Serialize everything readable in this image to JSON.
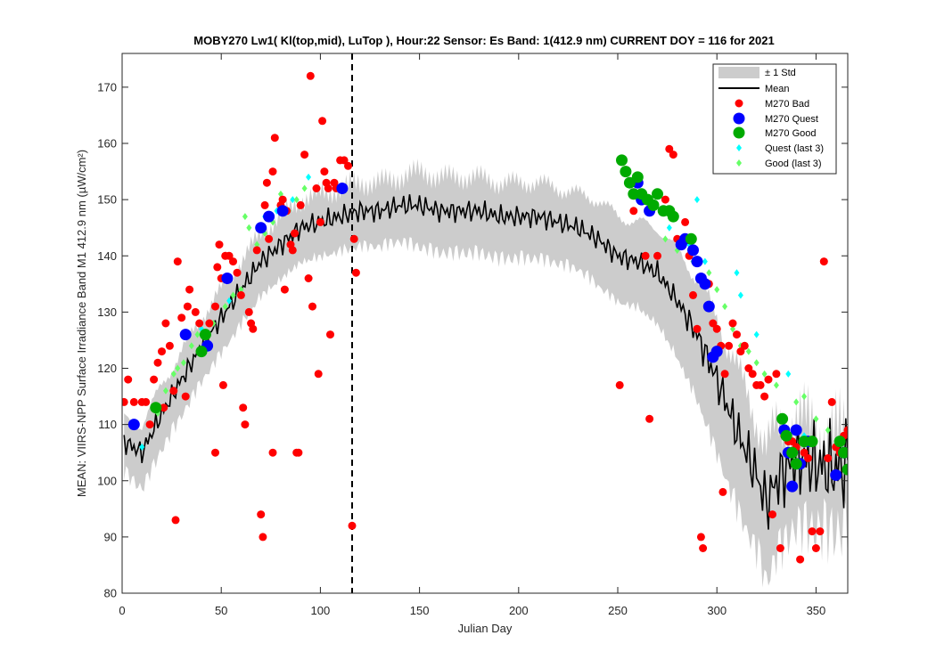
{
  "chart_data": {
    "type": "scatter",
    "title": "MOBY270   Lw1( Kl(top,mid), LuTop ),   Hour:22 Sensor: Es Band: 1(412.9 nm)   CURRENT DOY = 116 for 2021",
    "xlabel": "Julian Day",
    "ylabel": "MEAN: VIIRS-NPP Surface Irradiance Band M1 412.9 nm (µW/cm²)",
    "xlim": [
      0,
      366
    ],
    "ylim": [
      80,
      176
    ],
    "xticks": [
      0,
      50,
      100,
      150,
      200,
      250,
      300,
      350
    ],
    "yticks": [
      80,
      90,
      100,
      110,
      120,
      130,
      140,
      150,
      160,
      170
    ],
    "current_doy": 116,
    "grid": false,
    "legend_position": "top-right",
    "legend": [
      "± 1 Std",
      "Mean",
      "M270 Bad",
      "M270 Quest",
      "M270 Good",
      "Quest (last 3)",
      "Good (last 3)"
    ],
    "colors": {
      "std_band": "#cccccc",
      "mean": "#000000",
      "bad": "#ff0000",
      "quest": "#0000ff",
      "good": "#00aa00",
      "quest_last3": "#00ffff",
      "good_last3": "#66ff66"
    },
    "mean_std_series": [
      {
        "x": 1,
        "mean": 107,
        "std": 4
      },
      {
        "x": 10,
        "mean": 105,
        "std": 5
      },
      {
        "x": 20,
        "mean": 112,
        "std": 5
      },
      {
        "x": 30,
        "mean": 118,
        "std": 5
      },
      {
        "x": 40,
        "mean": 124,
        "std": 5
      },
      {
        "x": 50,
        "mean": 129,
        "std": 5
      },
      {
        "x": 60,
        "mean": 134,
        "std": 5
      },
      {
        "x": 70,
        "mean": 139,
        "std": 5
      },
      {
        "x": 80,
        "mean": 142,
        "std": 5
      },
      {
        "x": 90,
        "mean": 145,
        "std": 5
      },
      {
        "x": 100,
        "mean": 146,
        "std": 5
      },
      {
        "x": 110,
        "mean": 147,
        "std": 5
      },
      {
        "x": 120,
        "mean": 148,
        "std": 5
      },
      {
        "x": 130,
        "mean": 148,
        "std": 5
      },
      {
        "x": 140,
        "mean": 149,
        "std": 5
      },
      {
        "x": 150,
        "mean": 149,
        "std": 6
      },
      {
        "x": 160,
        "mean": 148,
        "std": 6
      },
      {
        "x": 170,
        "mean": 148,
        "std": 6
      },
      {
        "x": 180,
        "mean": 148,
        "std": 6
      },
      {
        "x": 190,
        "mean": 147,
        "std": 6
      },
      {
        "x": 200,
        "mean": 147,
        "std": 6
      },
      {
        "x": 210,
        "mean": 147,
        "std": 6
      },
      {
        "x": 220,
        "mean": 146,
        "std": 6
      },
      {
        "x": 230,
        "mean": 145,
        "std": 6
      },
      {
        "x": 240,
        "mean": 143,
        "std": 7
      },
      {
        "x": 250,
        "mean": 140,
        "std": 7
      },
      {
        "x": 260,
        "mean": 139,
        "std": 7
      },
      {
        "x": 270,
        "mean": 137,
        "std": 8
      },
      {
        "x": 280,
        "mean": 132,
        "std": 9
      },
      {
        "x": 290,
        "mean": 126,
        "std": 10
      },
      {
        "x": 300,
        "mean": 118,
        "std": 11
      },
      {
        "x": 310,
        "mean": 109,
        "std": 11
      },
      {
        "x": 320,
        "mean": 101,
        "std": 10
      },
      {
        "x": 325,
        "mean": 96,
        "std": 10
      },
      {
        "x": 330,
        "mean": 100,
        "std": 9
      },
      {
        "x": 340,
        "mean": 104,
        "std": 7
      },
      {
        "x": 350,
        "mean": 103,
        "std": 6
      },
      {
        "x": 360,
        "mean": 102,
        "std": 5
      },
      {
        "x": 366,
        "mean": 103,
        "std": 4
      }
    ],
    "series": [
      {
        "name": "M270 Bad",
        "points": [
          [
            1,
            114
          ],
          [
            3,
            118
          ],
          [
            6,
            114
          ],
          [
            10,
            114
          ],
          [
            12,
            114
          ],
          [
            14,
            110
          ],
          [
            16,
            118
          ],
          [
            18,
            121
          ],
          [
            20,
            123
          ],
          [
            22,
            128
          ],
          [
            24,
            124
          ],
          [
            26,
            116
          ],
          [
            28,
            139
          ],
          [
            30,
            129
          ],
          [
            32,
            115
          ],
          [
            33,
            131
          ],
          [
            34,
            134
          ],
          [
            37,
            130
          ],
          [
            39,
            128
          ],
          [
            42,
            126
          ],
          [
            44,
            128
          ],
          [
            47,
            131
          ],
          [
            48,
            138
          ],
          [
            49,
            142
          ],
          [
            50,
            136
          ],
          [
            51,
            117
          ],
          [
            52,
            140
          ],
          [
            54,
            140
          ],
          [
            56,
            139
          ],
          [
            58,
            137
          ],
          [
            60,
            133
          ],
          [
            61,
            113
          ],
          [
            62,
            110
          ],
          [
            64,
            130
          ],
          [
            65,
            128
          ],
          [
            66,
            127
          ],
          [
            68,
            141
          ],
          [
            70,
            94
          ],
          [
            71,
            90
          ],
          [
            72,
            149
          ],
          [
            73,
            153
          ],
          [
            74,
            143
          ],
          [
            76,
            155
          ],
          [
            77,
            161
          ],
          [
            80,
            149
          ],
          [
            81,
            150
          ],
          [
            82,
            134
          ],
          [
            83,
            148
          ],
          [
            85,
            142
          ],
          [
            86,
            141
          ],
          [
            87,
            144
          ],
          [
            88,
            105
          ],
          [
            89,
            105
          ],
          [
            90,
            149
          ],
          [
            92,
            158
          ],
          [
            94,
            136
          ],
          [
            95,
            172
          ],
          [
            96,
            131
          ],
          [
            98,
            152
          ],
          [
            99,
            119
          ],
          [
            100,
            146
          ],
          [
            101,
            164
          ],
          [
            102,
            155
          ],
          [
            103,
            153
          ],
          [
            104,
            152
          ],
          [
            105,
            126
          ],
          [
            107,
            153
          ],
          [
            108,
            152
          ],
          [
            110,
            157
          ],
          [
            112,
            157
          ],
          [
            114,
            156
          ],
          [
            116,
            92
          ],
          [
            117,
            143
          ],
          [
            118,
            137
          ],
          [
            21,
            113
          ],
          [
            47,
            105
          ],
          [
            27,
            93
          ],
          [
            76,
            105
          ],
          [
            251,
            117
          ],
          [
            258,
            148
          ],
          [
            262,
            151
          ],
          [
            264,
            140
          ],
          [
            266,
            111
          ],
          [
            270,
            140
          ],
          [
            274,
            150
          ],
          [
            276,
            159
          ],
          [
            278,
            158
          ],
          [
            280,
            143
          ],
          [
            284,
            146
          ],
          [
            286,
            140
          ],
          [
            288,
            133
          ],
          [
            290,
            127
          ],
          [
            292,
            90
          ],
          [
            293,
            88
          ],
          [
            296,
            135
          ],
          [
            298,
            128
          ],
          [
            300,
            127
          ],
          [
            302,
            124
          ],
          [
            303,
            98
          ],
          [
            304,
            119
          ],
          [
            306,
            124
          ],
          [
            308,
            128
          ],
          [
            310,
            126
          ],
          [
            312,
            123
          ],
          [
            314,
            124
          ],
          [
            316,
            120
          ],
          [
            318,
            119
          ],
          [
            320,
            117
          ],
          [
            322,
            117
          ],
          [
            324,
            115
          ],
          [
            326,
            118
          ],
          [
            328,
            94
          ],
          [
            330,
            119
          ],
          [
            332,
            88
          ],
          [
            334,
            108
          ],
          [
            336,
            107
          ],
          [
            338,
            107
          ],
          [
            340,
            106
          ],
          [
            342,
            86
          ],
          [
            344,
            105
          ],
          [
            346,
            104
          ],
          [
            348,
            91
          ],
          [
            350,
            88
          ],
          [
            352,
            91
          ],
          [
            354,
            139
          ],
          [
            356,
            104
          ],
          [
            358,
            114
          ],
          [
            360,
            106
          ],
          [
            362,
            105
          ],
          [
            364,
            108
          ],
          [
            366,
            109
          ]
        ]
      },
      {
        "name": "M270 Quest",
        "points": [
          [
            6,
            110
          ],
          [
            32,
            126
          ],
          [
            43,
            124
          ],
          [
            53,
            136
          ],
          [
            70,
            145
          ],
          [
            74,
            147
          ],
          [
            81,
            148
          ],
          [
            111,
            152
          ],
          [
            260,
            153
          ],
          [
            262,
            150
          ],
          [
            266,
            148
          ],
          [
            282,
            142
          ],
          [
            284,
            143
          ],
          [
            288,
            141
          ],
          [
            290,
            139
          ],
          [
            292,
            136
          ],
          [
            294,
            135
          ],
          [
            296,
            131
          ],
          [
            298,
            122
          ],
          [
            300,
            123
          ],
          [
            334,
            109
          ],
          [
            336,
            105
          ],
          [
            338,
            99
          ],
          [
            340,
            109
          ],
          [
            342,
            103
          ],
          [
            346,
            107
          ],
          [
            360,
            101
          ],
          [
            364,
            105
          ]
        ]
      },
      {
        "name": "M270 Good",
        "points": [
          [
            17,
            113
          ],
          [
            40,
            123
          ],
          [
            42,
            126
          ],
          [
            252,
            157
          ],
          [
            254,
            155
          ],
          [
            256,
            153
          ],
          [
            258,
            151
          ],
          [
            260,
            154
          ],
          [
            262,
            151
          ],
          [
            265,
            150
          ],
          [
            268,
            149
          ],
          [
            270,
            151
          ],
          [
            273,
            148
          ],
          [
            276,
            148
          ],
          [
            278,
            147
          ],
          [
            287,
            143
          ],
          [
            333,
            111
          ],
          [
            335,
            108
          ],
          [
            338,
            105
          ],
          [
            340,
            103
          ],
          [
            344,
            107
          ],
          [
            348,
            107
          ],
          [
            362,
            107
          ],
          [
            364,
            105
          ],
          [
            366,
            102
          ]
        ]
      },
      {
        "name": "Quest (last 3)",
        "points": [
          [
            10,
            106
          ],
          [
            40,
            127
          ],
          [
            54,
            132
          ],
          [
            72,
            147
          ],
          [
            78,
            148
          ],
          [
            86,
            150
          ],
          [
            94,
            154
          ],
          [
            276,
            145
          ],
          [
            286,
            142
          ],
          [
            290,
            150
          ],
          [
            294,
            139
          ],
          [
            310,
            137
          ],
          [
            312,
            133
          ],
          [
            320,
            126
          ],
          [
            336,
            119
          ],
          [
            344,
            108
          ]
        ]
      },
      {
        "name": "Good (last 3)",
        "points": [
          [
            18,
            112
          ],
          [
            22,
            116
          ],
          [
            26,
            119
          ],
          [
            28,
            120
          ],
          [
            31,
            121
          ],
          [
            35,
            124
          ],
          [
            38,
            126
          ],
          [
            46,
            128
          ],
          [
            52,
            131
          ],
          [
            56,
            133
          ],
          [
            60,
            134
          ],
          [
            62,
            147
          ],
          [
            64,
            145
          ],
          [
            68,
            142
          ],
          [
            72,
            144
          ],
          [
            76,
            146
          ],
          [
            80,
            151
          ],
          [
            84,
            148
          ],
          [
            88,
            150
          ],
          [
            92,
            152
          ],
          [
            274,
            143
          ],
          [
            280,
            141
          ],
          [
            288,
            139
          ],
          [
            296,
            137
          ],
          [
            300,
            134
          ],
          [
            304,
            131
          ],
          [
            308,
            127
          ],
          [
            312,
            124
          ],
          [
            316,
            123
          ],
          [
            320,
            121
          ],
          [
            324,
            119
          ],
          [
            330,
            117
          ],
          [
            340,
            114
          ],
          [
            344,
            115
          ],
          [
            350,
            111
          ],
          [
            356,
            109
          ]
        ]
      }
    ]
  }
}
